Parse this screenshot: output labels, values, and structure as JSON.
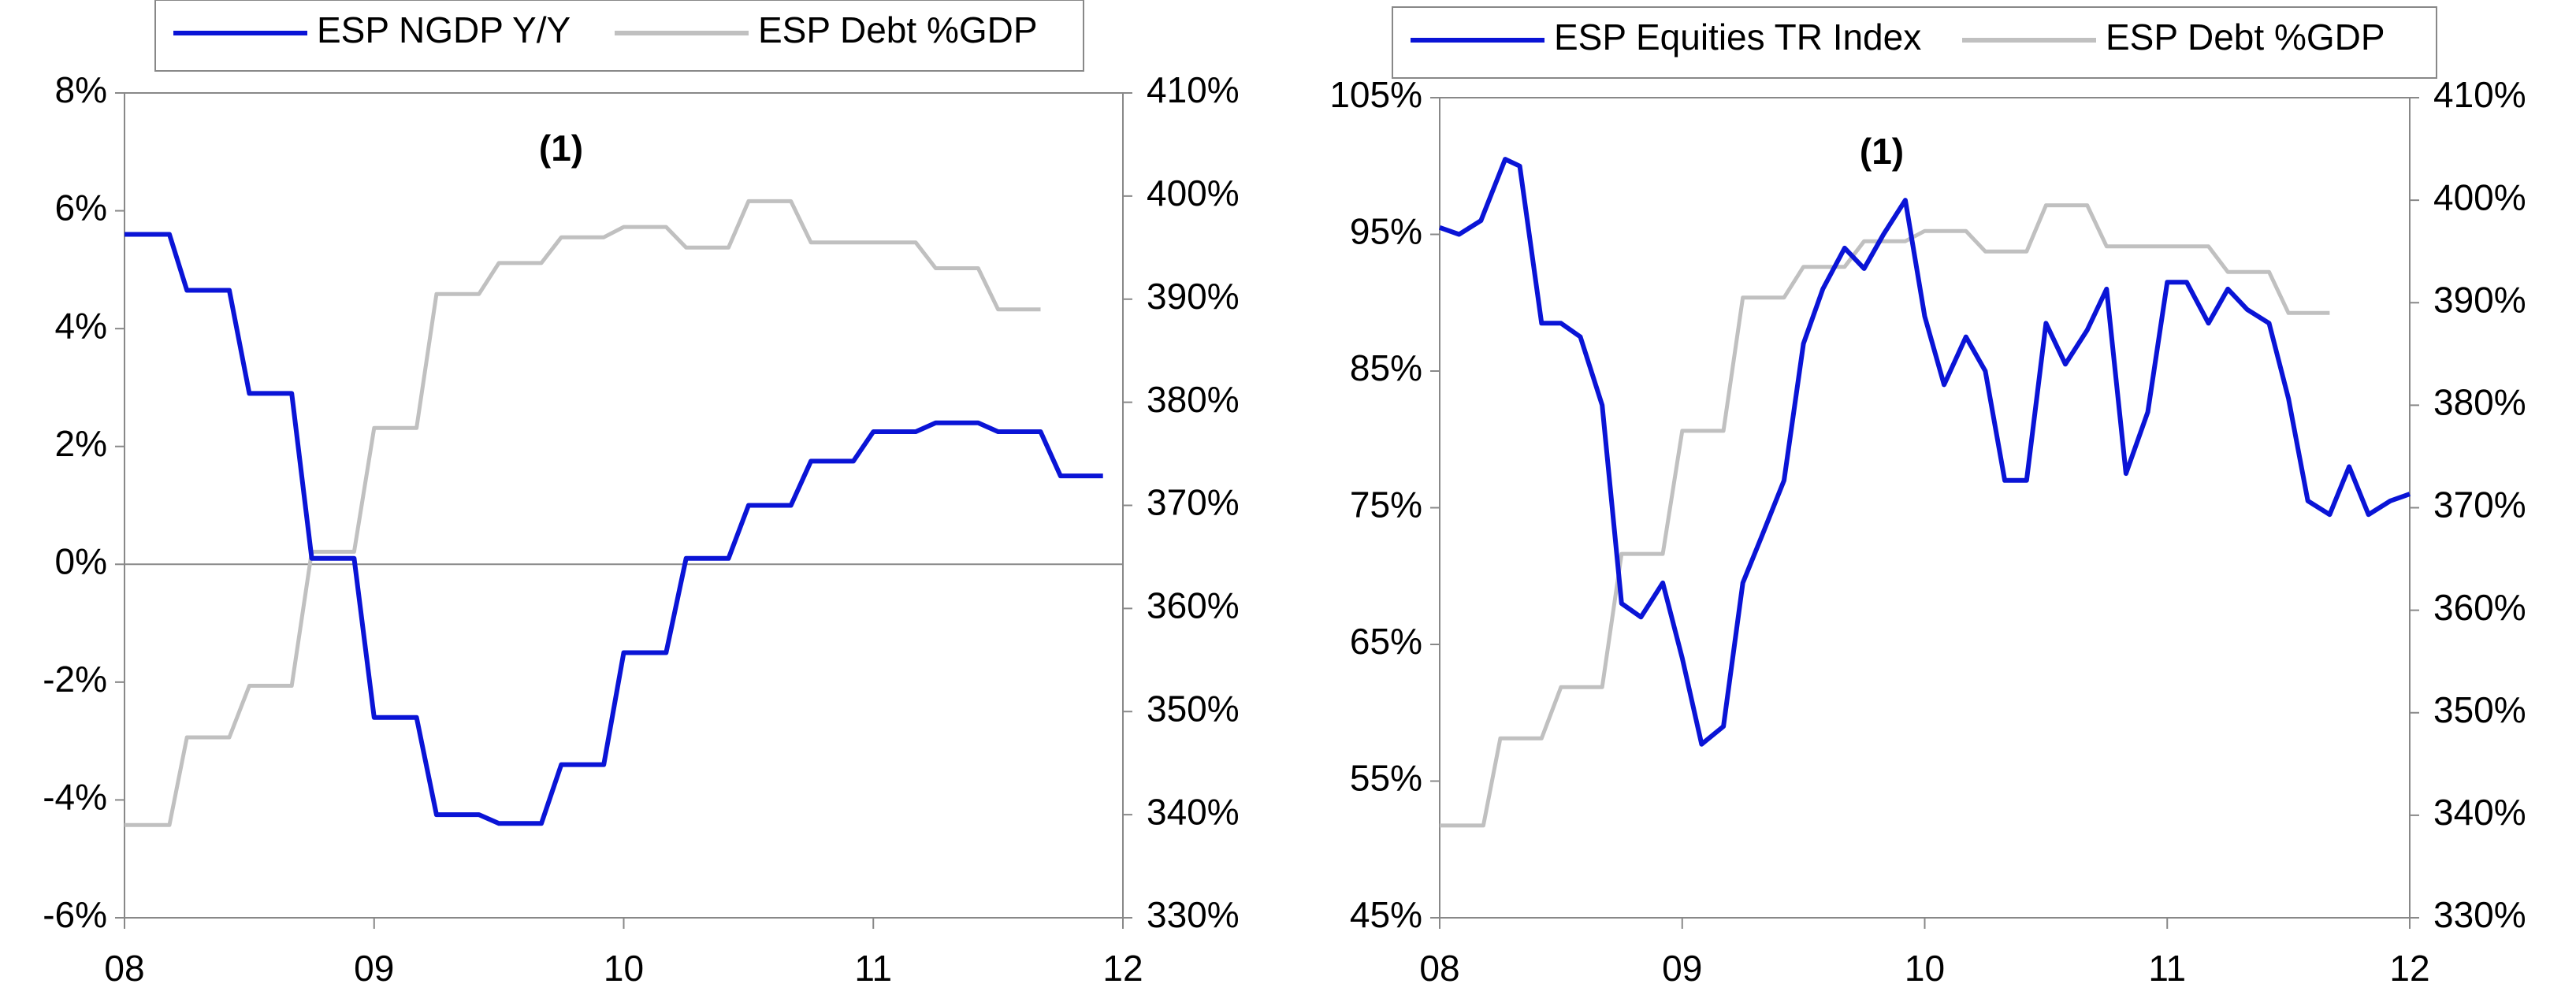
{
  "chart_data": [
    {
      "type": "line",
      "title": "(1)",
      "x_ticks": [
        "08",
        "09",
        "10",
        "11",
        "12"
      ],
      "x_range": [
        2008.0,
        2012.0
      ],
      "y_left": {
        "range": [
          -6,
          8
        ],
        "ticks": [
          "8%",
          "6%",
          "4%",
          "2%",
          "0%",
          "-2%",
          "-4%",
          "-6%"
        ],
        "tick_values": [
          8,
          6,
          4,
          2,
          0,
          -2,
          -4,
          -6
        ]
      },
      "y_right": {
        "range": [
          330,
          410
        ],
        "ticks": [
          "410%",
          "400%",
          "390%",
          "380%",
          "370%",
          "360%",
          "350%",
          "340%",
          "330%"
        ],
        "tick_values": [
          410,
          400,
          390,
          380,
          370,
          360,
          350,
          340,
          330
        ]
      },
      "zero_line": true,
      "legend": {
        "placement": "top"
      },
      "series": [
        {
          "name": "ESP NGDP Y/Y",
          "axis": "left",
          "color": "#0a14d6",
          "points": [
            [
              2008.0,
              5.6
            ],
            [
              2008.18,
              5.6
            ],
            [
              2008.25,
              4.65
            ],
            [
              2008.42,
              4.65
            ],
            [
              2008.5,
              2.9
            ],
            [
              2008.67,
              2.9
            ],
            [
              2008.75,
              0.1
            ],
            [
              2008.92,
              0.1
            ],
            [
              2009.0,
              -2.6
            ],
            [
              2009.17,
              -2.6
            ],
            [
              2009.25,
              -4.25
            ],
            [
              2009.42,
              -4.25
            ],
            [
              2009.5,
              -4.4
            ],
            [
              2009.67,
              -4.4
            ],
            [
              2009.75,
              -3.4
            ],
            [
              2009.92,
              -3.4
            ],
            [
              2010.0,
              -1.5
            ],
            [
              2010.17,
              -1.5
            ],
            [
              2010.25,
              0.1
            ],
            [
              2010.42,
              0.1
            ],
            [
              2010.5,
              1.0
            ],
            [
              2010.67,
              1.0
            ],
            [
              2010.75,
              1.75
            ],
            [
              2010.92,
              1.75
            ],
            [
              2011.0,
              2.25
            ],
            [
              2011.17,
              2.25
            ],
            [
              2011.25,
              2.4
            ],
            [
              2011.42,
              2.4
            ],
            [
              2011.5,
              2.25
            ],
            [
              2011.67,
              2.25
            ],
            [
              2011.75,
              1.5
            ],
            [
              2011.92,
              1.5
            ]
          ]
        },
        {
          "name": "ESP Debt %GDP",
          "axis": "right",
          "color": "#c0c0c0",
          "points": [
            [
              2008.0,
              339
            ],
            [
              2008.18,
              339
            ],
            [
              2008.25,
              347.5
            ],
            [
              2008.42,
              347.5
            ],
            [
              2008.5,
              352.5
            ],
            [
              2008.67,
              352.5
            ],
            [
              2008.75,
              365.5
            ],
            [
              2008.92,
              365.5
            ],
            [
              2009.0,
              377.5
            ],
            [
              2009.17,
              377.5
            ],
            [
              2009.25,
              390.5
            ],
            [
              2009.42,
              390.5
            ],
            [
              2009.5,
              393.5
            ],
            [
              2009.67,
              393.5
            ],
            [
              2009.75,
              396
            ],
            [
              2009.92,
              396
            ],
            [
              2010.0,
              397
            ],
            [
              2010.17,
              397
            ],
            [
              2010.25,
              395
            ],
            [
              2010.42,
              395
            ],
            [
              2010.5,
              399.5
            ],
            [
              2010.67,
              399.5
            ],
            [
              2010.75,
              395.5
            ],
            [
              2010.92,
              395.5
            ],
            [
              2011.0,
              395.5
            ],
            [
              2011.17,
              395.5
            ],
            [
              2011.25,
              393
            ],
            [
              2011.42,
              393
            ],
            [
              2011.5,
              389
            ],
            [
              2011.67,
              389
            ]
          ]
        }
      ]
    },
    {
      "type": "line",
      "title": "(1)",
      "x_ticks": [
        "08",
        "09",
        "10",
        "11",
        "12"
      ],
      "x_range": [
        2008.0,
        2012.0
      ],
      "y_left": {
        "range": [
          45,
          105
        ],
        "ticks": [
          "105%",
          "95%",
          "85%",
          "75%",
          "65%",
          "55%",
          "45%"
        ],
        "tick_values": [
          105,
          95,
          85,
          75,
          65,
          55,
          45
        ]
      },
      "y_right": {
        "range": [
          330,
          410
        ],
        "ticks": [
          "410%",
          "400%",
          "390%",
          "380%",
          "370%",
          "360%",
          "350%",
          "340%",
          "330%"
        ],
        "tick_values": [
          410,
          400,
          390,
          380,
          370,
          360,
          350,
          340,
          330
        ]
      },
      "zero_line": false,
      "legend": {
        "placement": "top"
      },
      "series": [
        {
          "name": "ESP Equities TR Index",
          "axis": "left",
          "color": "#0a14d6",
          "points": [
            [
              2008.0,
              95.5
            ],
            [
              2008.08,
              95
            ],
            [
              2008.17,
              96
            ],
            [
              2008.27,
              100.5
            ],
            [
              2008.33,
              100
            ],
            [
              2008.42,
              88.5
            ],
            [
              2008.5,
              88.5
            ],
            [
              2008.58,
              87.5
            ],
            [
              2008.67,
              82.5
            ],
            [
              2008.75,
              68
            ],
            [
              2008.83,
              67
            ],
            [
              2008.92,
              69.5
            ],
            [
              2009.0,
              64
            ],
            [
              2009.08,
              57.7
            ],
            [
              2009.17,
              59
            ],
            [
              2009.25,
              69.5
            ],
            [
              2009.33,
              73
            ],
            [
              2009.42,
              77
            ],
            [
              2009.5,
              87
            ],
            [
              2009.58,
              91
            ],
            [
              2009.67,
              94
            ],
            [
              2009.75,
              92.5
            ],
            [
              2009.83,
              95
            ],
            [
              2009.92,
              97.5
            ],
            [
              2010.0,
              89
            ],
            [
              2010.08,
              84
            ],
            [
              2010.17,
              87.5
            ],
            [
              2010.25,
              85
            ],
            [
              2010.33,
              77
            ],
            [
              2010.42,
              77
            ],
            [
              2010.5,
              88.5
            ],
            [
              2010.58,
              85.5
            ],
            [
              2010.67,
              88
            ],
            [
              2010.75,
              91
            ],
            [
              2010.83,
              77.5
            ],
            [
              2010.92,
              82
            ],
            [
              2011.0,
              91.5
            ],
            [
              2011.08,
              91.5
            ],
            [
              2011.17,
              88.5
            ],
            [
              2011.25,
              91
            ],
            [
              2011.33,
              89.5
            ],
            [
              2011.42,
              88.5
            ],
            [
              2011.5,
              83
            ],
            [
              2011.58,
              75.5
            ],
            [
              2011.67,
              74.5
            ],
            [
              2011.75,
              78
            ],
            [
              2011.83,
              74.5
            ],
            [
              2011.92,
              75.5
            ],
            [
              2012.0,
              76
            ]
          ]
        },
        {
          "name": "ESP Debt %GDP",
          "axis": "right",
          "color": "#c0c0c0",
          "points": [
            [
              2008.0,
              339
            ],
            [
              2008.18,
              339
            ],
            [
              2008.25,
              347.5
            ],
            [
              2008.42,
              347.5
            ],
            [
              2008.5,
              352.5
            ],
            [
              2008.67,
              352.5
            ],
            [
              2008.75,
              365.5
            ],
            [
              2008.92,
              365.5
            ],
            [
              2009.0,
              377.5
            ],
            [
              2009.17,
              377.5
            ],
            [
              2009.25,
              390.5
            ],
            [
              2009.42,
              390.5
            ],
            [
              2009.5,
              393.5
            ],
            [
              2009.67,
              393.5
            ],
            [
              2009.75,
              396
            ],
            [
              2009.92,
              396
            ],
            [
              2010.0,
              397
            ],
            [
              2010.17,
              397
            ],
            [
              2010.25,
              395
            ],
            [
              2010.42,
              395
            ],
            [
              2010.5,
              399.5
            ],
            [
              2010.67,
              399.5
            ],
            [
              2010.75,
              395.5
            ],
            [
              2010.92,
              395.5
            ],
            [
              2011.0,
              395.5
            ],
            [
              2011.17,
              395.5
            ],
            [
              2011.25,
              393
            ],
            [
              2011.42,
              393
            ],
            [
              2011.5,
              389
            ],
            [
              2011.67,
              389
            ]
          ]
        }
      ]
    }
  ]
}
